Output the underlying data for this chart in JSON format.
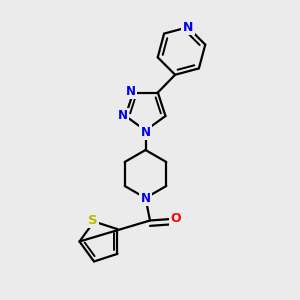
{
  "background_color": "#ebebeb",
  "bond_color": "#000000",
  "bond_width": 1.6,
  "N_color": "#0000ee",
  "O_color": "#ff0000",
  "S_color": "#bbbb00",
  "font_size": 8.5,
  "figsize": [
    3.0,
    3.0
  ],
  "dpi": 100,
  "xlim": [
    0,
    10
  ],
  "ylim": [
    0,
    10
  ]
}
